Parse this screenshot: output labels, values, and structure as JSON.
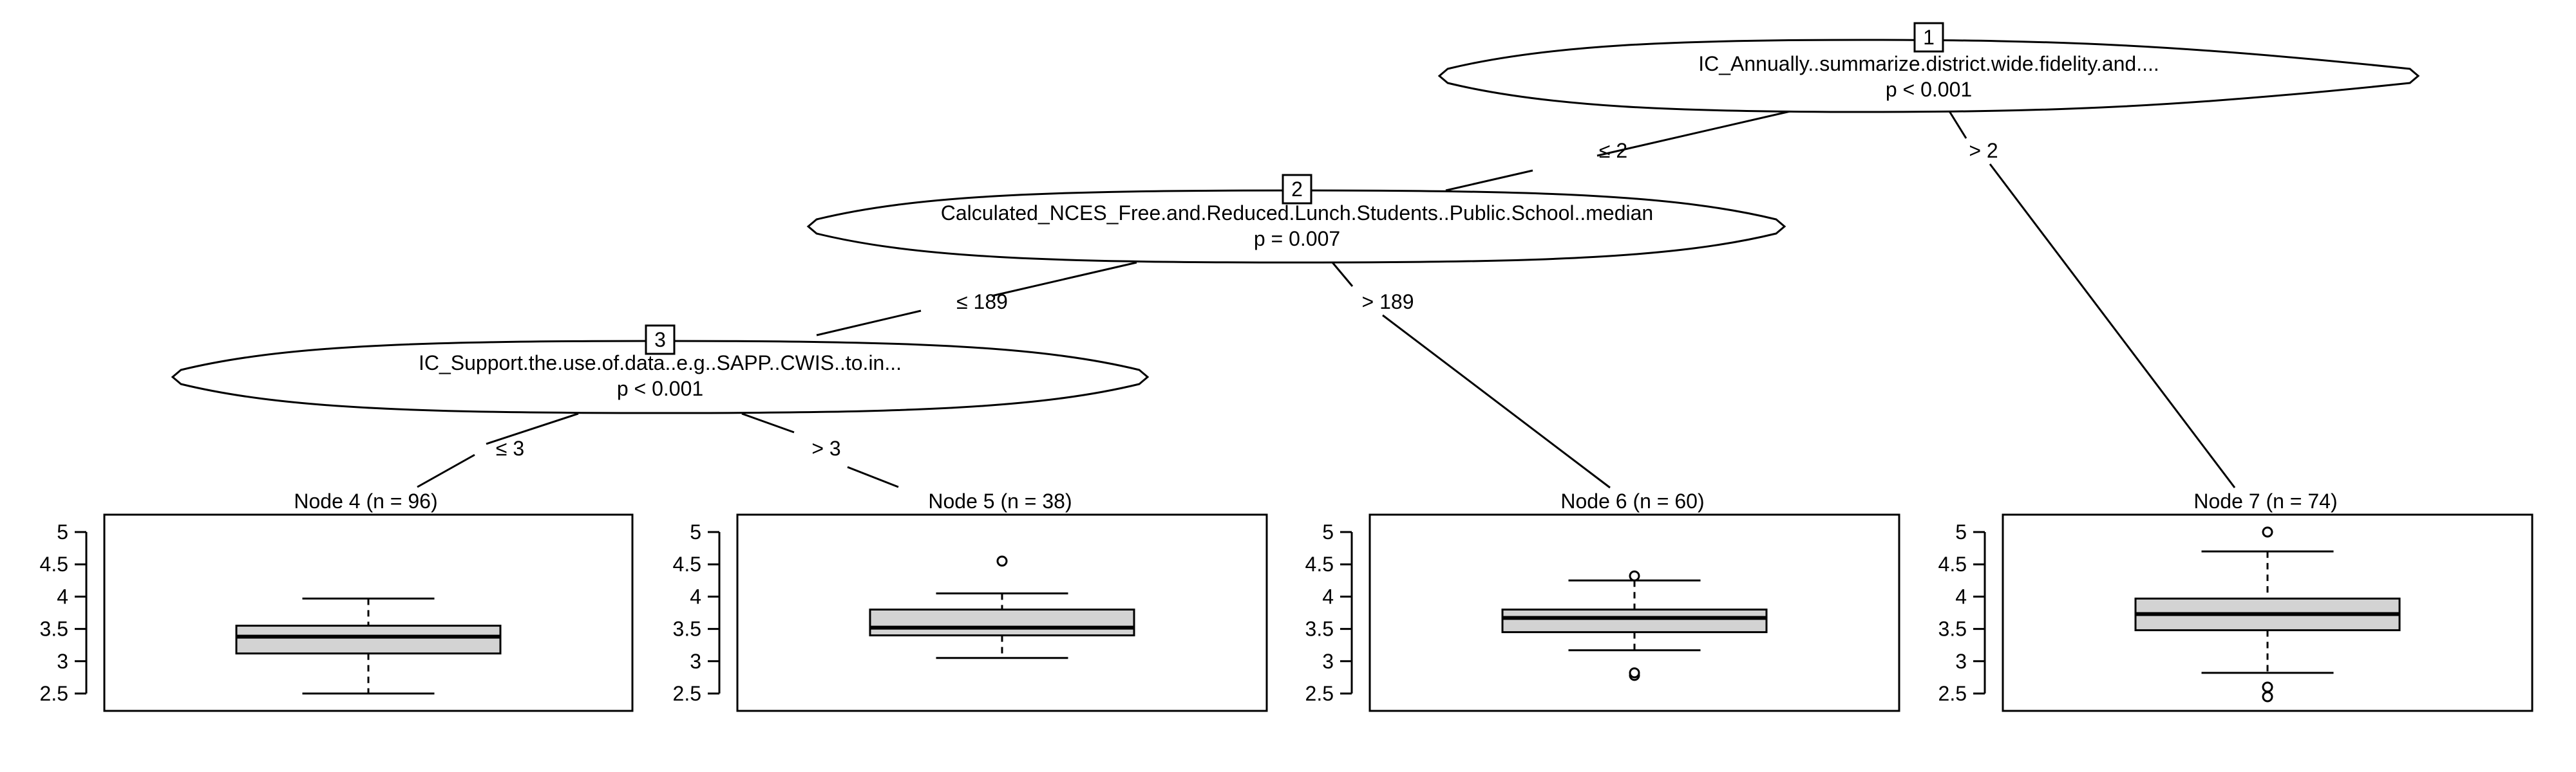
{
  "inner_nodes": [
    {
      "id": "1",
      "variable": "IC_Annually..summarize.district.wide.fidelity.and....",
      "p_value": "p < 0.001"
    },
    {
      "id": "2",
      "variable": "Calculated_NCES_Free.and.Reduced.Lunch.Students..Public.School..median",
      "p_value": "p = 0.007"
    },
    {
      "id": "3",
      "variable": "IC_Support.the.use.of.data..e.g..SAPP..CWIS..to.in...",
      "p_value": "p < 0.001"
    }
  ],
  "edges": [
    {
      "from": "1",
      "to": "2",
      "label": "≤ 2"
    },
    {
      "from": "1",
      "to": "7",
      "label": "> 2"
    },
    {
      "from": "2",
      "to": "3",
      "label": "≤ 189"
    },
    {
      "from": "2",
      "to": "6",
      "label": "> 189"
    },
    {
      "from": "3",
      "to": "4",
      "label": "≤ 3"
    },
    {
      "from": "3",
      "to": "5",
      "label": "> 3"
    }
  ],
  "terminal_nodes": [
    {
      "id": "4",
      "title": "Node 4 (n = 96)",
      "stats": {
        "whisker_low": 2.5,
        "q1": 3.12,
        "median": 3.38,
        "q3": 3.55,
        "whisker_high": 3.97
      },
      "outliers": []
    },
    {
      "id": "5",
      "title": "Node 5 (n = 38)",
      "stats": {
        "whisker_low": 3.05,
        "q1": 3.4,
        "median": 3.52,
        "q3": 3.8,
        "whisker_high": 4.05
      },
      "outliers": [
        4.55
      ]
    },
    {
      "id": "6",
      "title": "Node 6 (n = 60)",
      "stats": {
        "whisker_low": 3.17,
        "q1": 3.45,
        "median": 3.67,
        "q3": 3.8,
        "whisker_high": 4.25
      },
      "outliers": [
        4.32,
        2.78,
        2.82
      ]
    },
    {
      "id": "7",
      "title": "Node 7 (n = 74)",
      "stats": {
        "whisker_low": 2.82,
        "q1": 3.48,
        "median": 3.73,
        "q3": 3.97,
        "whisker_high": 4.7
      },
      "outliers": [
        5.0,
        2.6,
        2.45
      ]
    }
  ],
  "y_axis": {
    "ticks": [
      "5",
      "4.5",
      "4",
      "3.5",
      "3",
      "2.5"
    ],
    "range": [
      2.25,
      5.25
    ]
  },
  "colors": {
    "box_fill": "#d3d3d3",
    "stroke": "#000000"
  }
}
